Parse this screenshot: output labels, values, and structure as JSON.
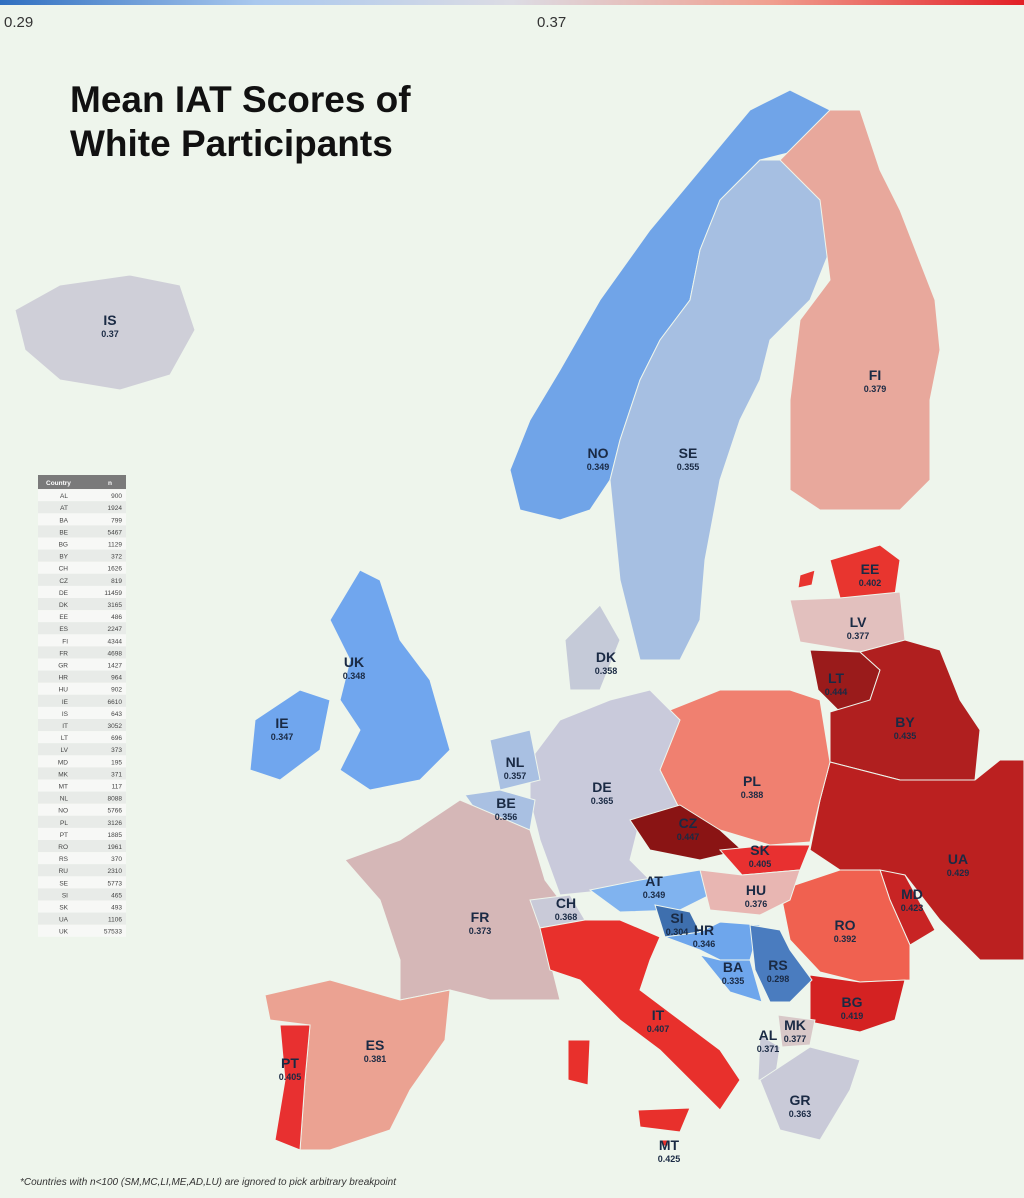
{
  "title": "Mean IAT Scores of White Participants",
  "colorbar": {
    "ticks": [
      0.29,
      0.37
    ],
    "colors": [
      "#2f6fc0",
      "#a9c8ee",
      "#dcdce4",
      "#f0a090",
      "#e21f26"
    ]
  },
  "countries": [
    {
      "code": "IS",
      "value": 0.37,
      "color": "#cfcfd8"
    },
    {
      "code": "NO",
      "value": 0.349,
      "color": "#70a4e8"
    },
    {
      "code": "SE",
      "value": 0.355,
      "color": "#a6bfe2"
    },
    {
      "code": "FI",
      "value": 0.379,
      "color": "#e8a89c"
    },
    {
      "code": "EE",
      "value": 0.402,
      "color": "#e8352f"
    },
    {
      "code": "LV",
      "value": 0.377,
      "color": "#e2c0be"
    },
    {
      "code": "LT",
      "value": 0.444,
      "color": "#9a1b1b"
    },
    {
      "code": "BY",
      "value": 0.435,
      "color": "#b01f1f"
    },
    {
      "code": "UA",
      "value": 0.429,
      "color": "#bb2020"
    },
    {
      "code": "MD",
      "value": 0.423,
      "color": "#c82424"
    },
    {
      "code": "RO",
      "value": 0.392,
      "color": "#f06150"
    },
    {
      "code": "BG",
      "value": 0.419,
      "color": "#d42222"
    },
    {
      "code": "PL",
      "value": 0.388,
      "color": "#f08070"
    },
    {
      "code": "DE",
      "value": 0.365,
      "color": "#c9cadb"
    },
    {
      "code": "DK",
      "value": 0.358,
      "color": "#c5cad8"
    },
    {
      "code": "NL",
      "value": 0.357,
      "color": "#a9c0e2"
    },
    {
      "code": "BE",
      "value": 0.356,
      "color": "#a9c0e2"
    },
    {
      "code": "FR",
      "value": 0.373,
      "color": "#d5b7b7"
    },
    {
      "code": "CH",
      "value": 0.368,
      "color": "#c9cad8"
    },
    {
      "code": "AT",
      "value": 0.349,
      "color": "#80b3ef"
    },
    {
      "code": "CZ",
      "value": 0.447,
      "color": "#8a1414"
    },
    {
      "code": "SK",
      "value": 0.405,
      "color": "#e83030"
    },
    {
      "code": "HU",
      "value": 0.376,
      "color": "#e8b6b2"
    },
    {
      "code": "SI",
      "value": 0.304,
      "color": "#3e6fae"
    },
    {
      "code": "HR",
      "value": 0.346,
      "color": "#6ea6ec"
    },
    {
      "code": "BA",
      "value": 0.335,
      "color": "#6ea6ec"
    },
    {
      "code": "RS",
      "value": 0.298,
      "color": "#4a7cbf"
    },
    {
      "code": "MK",
      "value": 0.377,
      "color": "#d8c8c8"
    },
    {
      "code": "AL",
      "value": 0.371,
      "color": "#c9cad8"
    },
    {
      "code": "GR",
      "value": 0.363,
      "color": "#c9cad8"
    },
    {
      "code": "IT",
      "value": 0.407,
      "color": "#e8302c"
    },
    {
      "code": "MT",
      "value": 0.425,
      "color": "#e8302c"
    },
    {
      "code": "ES",
      "value": 0.381,
      "color": "#eba292"
    },
    {
      "code": "PT",
      "value": 0.405,
      "color": "#e83030"
    },
    {
      "code": "UK",
      "value": 0.348,
      "color": "#70a6ee"
    },
    {
      "code": "IE",
      "value": 0.347,
      "color": "#70a6ee"
    }
  ],
  "table": {
    "header": [
      "Country",
      "n"
    ],
    "rows": [
      [
        "AL",
        900
      ],
      [
        "AT",
        1924
      ],
      [
        "BA",
        799
      ],
      [
        "BE",
        5467
      ],
      [
        "BG",
        1129
      ],
      [
        "BY",
        372
      ],
      [
        "CH",
        1626
      ],
      [
        "CZ",
        819
      ],
      [
        "DE",
        11459
      ],
      [
        "DK",
        3165
      ],
      [
        "EE",
        486
      ],
      [
        "ES",
        2247
      ],
      [
        "FI",
        4344
      ],
      [
        "FR",
        4698
      ],
      [
        "GR",
        1427
      ],
      [
        "HR",
        964
      ],
      [
        "HU",
        902
      ],
      [
        "IE",
        6610
      ],
      [
        "IS",
        643
      ],
      [
        "IT",
        3052
      ],
      [
        "LT",
        696
      ],
      [
        "LV",
        373
      ],
      [
        "MD",
        195
      ],
      [
        "MK",
        371
      ],
      [
        "MT",
        117
      ],
      [
        "NL",
        8088
      ],
      [
        "NO",
        5766
      ],
      [
        "PL",
        3126
      ],
      [
        "PT",
        1885
      ],
      [
        "RO",
        1961
      ],
      [
        "RS",
        370
      ],
      [
        "RU",
        2310
      ],
      [
        "SE",
        5773
      ],
      [
        "SI",
        465
      ],
      [
        "SK",
        493
      ],
      [
        "UA",
        1106
      ],
      [
        "UK",
        57533
      ]
    ]
  },
  "footnote": "*Countries with n<100 (SM,MC,LI,ME,AD,LU) are ignored to pick arbitrary breakpoint"
}
